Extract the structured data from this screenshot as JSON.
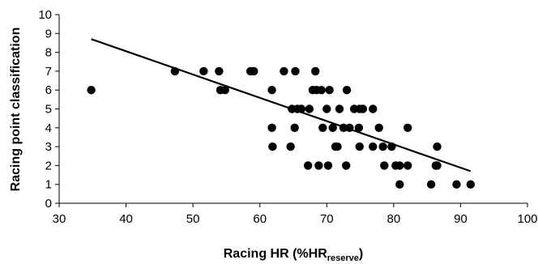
{
  "chart_data": {
    "type": "scatter",
    "xlabel_main": "Racing HR (%HR",
    "xlabel_sub": "reserve",
    "xlabel_tail": ")",
    "ylabel": "Racing point classification",
    "xlim": [
      30,
      100
    ],
    "ylim": [
      0,
      10
    ],
    "xticks": [
      30,
      40,
      50,
      60,
      70,
      80,
      90,
      100
    ],
    "yticks": [
      0,
      1,
      2,
      3,
      4,
      5,
      6,
      7,
      8,
      9,
      10
    ],
    "grid": false,
    "legend": "none",
    "colors": {
      "points": "#000000",
      "trendline": "#000000",
      "axes": "#000000"
    },
    "points": [
      {
        "x": 34.8,
        "y": 6
      },
      {
        "x": 47.3,
        "y": 7
      },
      {
        "x": 51.6,
        "y": 7
      },
      {
        "x": 53.9,
        "y": 7
      },
      {
        "x": 54.1,
        "y": 6
      },
      {
        "x": 54.8,
        "y": 6
      },
      {
        "x": 58.6,
        "y": 7
      },
      {
        "x": 59.1,
        "y": 7
      },
      {
        "x": 61.8,
        "y": 6
      },
      {
        "x": 61.8,
        "y": 4
      },
      {
        "x": 61.9,
        "y": 3
      },
      {
        "x": 63.6,
        "y": 7
      },
      {
        "x": 64.8,
        "y": 5
      },
      {
        "x": 65.3,
        "y": 7
      },
      {
        "x": 65.2,
        "y": 4
      },
      {
        "x": 64.6,
        "y": 3
      },
      {
        "x": 65.6,
        "y": 5
      },
      {
        "x": 66.2,
        "y": 5
      },
      {
        "x": 67.2,
        "y": 2
      },
      {
        "x": 67.4,
        "y": 5
      },
      {
        "x": 67.9,
        "y": 6
      },
      {
        "x": 68.3,
        "y": 7
      },
      {
        "x": 68.5,
        "y": 6
      },
      {
        "x": 68.8,
        "y": 2
      },
      {
        "x": 69.2,
        "y": 6
      },
      {
        "x": 69.4,
        "y": 4
      },
      {
        "x": 70.0,
        "y": 5
      },
      {
        "x": 70.2,
        "y": 2
      },
      {
        "x": 70.4,
        "y": 6
      },
      {
        "x": 70.9,
        "y": 4
      },
      {
        "x": 71.3,
        "y": 3
      },
      {
        "x": 71.6,
        "y": 3
      },
      {
        "x": 71.9,
        "y": 5
      },
      {
        "x": 72.5,
        "y": 4
      },
      {
        "x": 72.9,
        "y": 2
      },
      {
        "x": 73.0,
        "y": 6
      },
      {
        "x": 73.4,
        "y": 4
      },
      {
        "x": 74.1,
        "y": 5
      },
      {
        "x": 74.8,
        "y": 4
      },
      {
        "x": 74.9,
        "y": 3
      },
      {
        "x": 74.9,
        "y": 5
      },
      {
        "x": 75.4,
        "y": 5
      },
      {
        "x": 76.9,
        "y": 5
      },
      {
        "x": 76.9,
        "y": 3
      },
      {
        "x": 77.8,
        "y": 4
      },
      {
        "x": 78.4,
        "y": 3
      },
      {
        "x": 78.6,
        "y": 2
      },
      {
        "x": 79.7,
        "y": 3
      },
      {
        "x": 80.3,
        "y": 2
      },
      {
        "x": 80.9,
        "y": 2
      },
      {
        "x": 80.9,
        "y": 1
      },
      {
        "x": 82.1,
        "y": 4
      },
      {
        "x": 82.1,
        "y": 2
      },
      {
        "x": 85.6,
        "y": 1
      },
      {
        "x": 86.3,
        "y": 2
      },
      {
        "x": 86.5,
        "y": 3
      },
      {
        "x": 86.5,
        "y": 2
      },
      {
        "x": 89.4,
        "y": 1
      },
      {
        "x": 91.5,
        "y": 1
      }
    ],
    "trendline": {
      "x1": 34.8,
      "y1": 8.7,
      "x2": 91.5,
      "y2": 1.7
    }
  }
}
